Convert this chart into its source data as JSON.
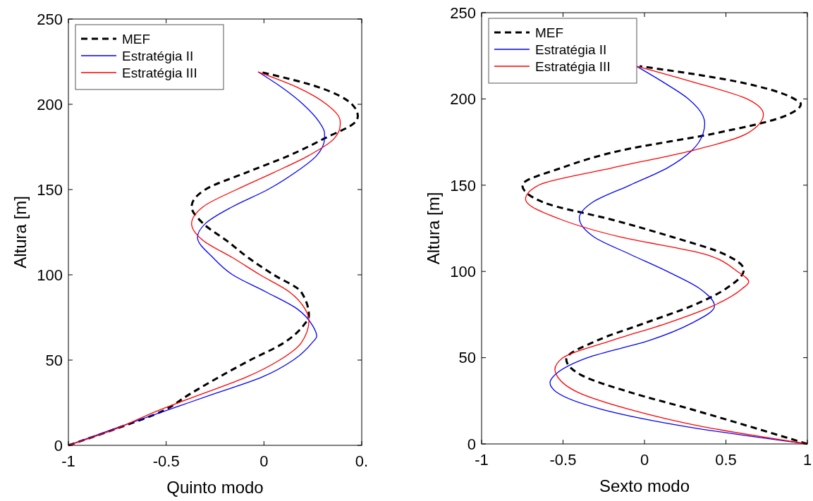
{
  "chart_data": [
    {
      "type": "line",
      "xlabel": "Quinto modo",
      "ylabel": "Altura [m]",
      "xlim": [
        -1,
        0.5
      ],
      "xticks": [
        -1,
        -0.5,
        0,
        {
          "value": 0.5,
          "label": "0."
        }
      ],
      "ylim": [
        0,
        250
      ],
      "yticks": [
        0,
        50,
        100,
        150,
        200,
        250
      ],
      "grid": false,
      "legend": "top left",
      "series": [
        {
          "name": "MEF",
          "color": "#000000",
          "line_style": "dashed",
          "x": [
            -1,
            -0.75,
            -0.52,
            -0.38,
            -0.23,
            -0.07,
            0.1,
            0.2,
            0.23,
            0.19,
            0.05,
            -0.08,
            -0.19,
            -0.31,
            -0.37,
            -0.3,
            -0.09,
            0.13,
            0.31,
            0.47,
            0.48,
            0.45,
            0.28,
            -0.02
          ],
          "values": [
            0,
            10,
            20,
            30,
            40,
            50,
            60,
            70,
            76,
            90,
            100,
            110,
            120,
            130,
            140,
            150,
            160,
            170,
            180,
            190,
            193,
            200,
            210,
            219
          ]
        },
        {
          "name": "Estratégia II",
          "color": "#0000ff",
          "x": [
            -1,
            -0.76,
            -0.51,
            -0.26,
            -0.01,
            0.15,
            0.245,
            0.27,
            0.25,
            0.17,
            0.01,
            -0.16,
            -0.26,
            -0.34,
            -0.3,
            -0.16,
            0.02,
            0.16,
            0.27,
            0.31,
            0.31,
            0.28,
            0.2,
            0.09,
            -0.03
          ],
          "values": [
            0,
            10,
            20,
            30,
            40,
            50,
            60,
            64,
            70,
            80,
            90,
            100,
            110,
            122,
            130,
            140,
            150,
            160,
            170,
            180,
            183,
            190,
            200,
            210,
            219
          ]
        },
        {
          "name": "Estratégia III",
          "color": "#ff0000",
          "x": [
            -1,
            -0.75,
            -0.55,
            -0.32,
            -0.09,
            0.08,
            0.19,
            0.23,
            0.21,
            0.13,
            -0.02,
            -0.16,
            -0.31,
            -0.37,
            -0.31,
            -0.14,
            0.05,
            0.23,
            0.36,
            0.39,
            0.39,
            0.32,
            0.17,
            -0.03
          ],
          "values": [
            0,
            10,
            20,
            30,
            40,
            50,
            60,
            73,
            80,
            90,
            100,
            110,
            120,
            130,
            140,
            150,
            160,
            170,
            180,
            188,
            190,
            200,
            210,
            219
          ]
        }
      ]
    },
    {
      "type": "line",
      "xlabel": "Sexto modo",
      "ylabel": "Altura [m]",
      "xlim": [
        -1,
        1
      ],
      "xticks": [
        -1,
        -0.5,
        0,
        0.5,
        1
      ],
      "ylim": [
        0,
        250
      ],
      "yticks": [
        0,
        50,
        100,
        150,
        200,
        250
      ],
      "grid": false,
      "legend": "top left",
      "series": [
        {
          "name": "MEF",
          "color": "#000000",
          "line_style": "dashed",
          "x": [
            1,
            0.65,
            0.29,
            -0.09,
            -0.39,
            -0.48,
            -0.29,
            0,
            0.29,
            0.5,
            0.61,
            0.49,
            0.17,
            -0.2,
            -0.62,
            -0.75,
            -0.51,
            -0.15,
            0.43,
            0.86,
            0.96,
            0.92,
            0.57,
            -0.03
          ],
          "values": [
            0,
            10,
            20,
            30,
            40,
            49,
            60,
            70,
            80,
            90,
            101,
            110,
            120,
            130,
            140,
            150,
            160,
            170,
            180,
            190,
            197,
            200,
            210,
            219
          ]
        },
        {
          "name": "Estratégia II",
          "color": "#0000ff",
          "x": [
            1,
            0.26,
            -0.26,
            -0.54,
            -0.58,
            -0.55,
            -0.35,
            0.03,
            0.29,
            0.43,
            0.34,
            0.14,
            -0.09,
            -0.31,
            -0.4,
            -0.32,
            -0.09,
            0.14,
            0.29,
            0.36,
            0.37,
            0.36,
            0.27,
            0.11,
            -0.05
          ],
          "values": [
            0,
            10,
            20,
            30,
            35.5,
            40,
            50,
            60,
            70,
            80,
            90,
            100,
            110,
            120,
            131,
            140,
            150,
            160,
            170,
            180,
            186,
            190,
            200,
            210,
            219
          ]
        },
        {
          "name": "Estratégia III",
          "color": "#ff0000",
          "x": [
            1,
            0.36,
            -0.09,
            -0.41,
            -0.54,
            -0.55,
            -0.5,
            -0.2,
            0.14,
            0.42,
            0.6,
            0.64,
            0.57,
            0.37,
            -0.15,
            -0.51,
            -0.73,
            -0.65,
            -0.2,
            0.29,
            0.63,
            0.73,
            0.63,
            0.29,
            -0.05
          ],
          "values": [
            0,
            10,
            20,
            30,
            40,
            43,
            50,
            60,
            70,
            80,
            90,
            94,
            100,
            110,
            120,
            130,
            142,
            150,
            160,
            170,
            180,
            191,
            200,
            210,
            219
          ]
        }
      ]
    }
  ]
}
